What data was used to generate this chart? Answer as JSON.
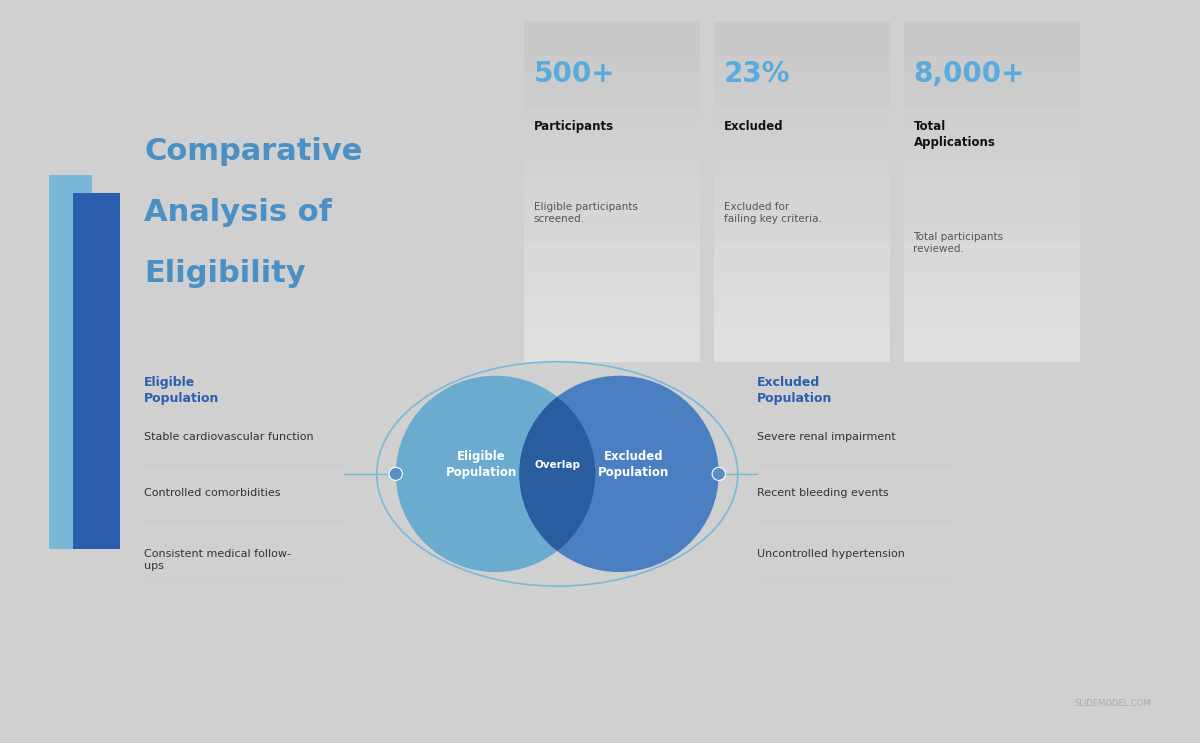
{
  "title_line1": "Comparative",
  "title_line2": "Analysis of",
  "title_line3": "Eligibility",
  "title_color": "#4a90c4",
  "bg_color": "#ffffff",
  "slide_bg": "#d0d0d0",
  "stats": [
    {
      "value": "500+",
      "label": "Participants",
      "desc": "Eligible participants\nscreened."
    },
    {
      "value": "23%",
      "label": "Excluded",
      "desc": "Excluded for\nfailing key criteria."
    },
    {
      "value": "8,000+",
      "label": "Total\nApplications",
      "desc": "Total participants\nreviewed."
    }
  ],
  "stat_value_color": "#5aabdd",
  "stat_box_top_color": "#e8e8e8",
  "stat_box_bottom_color": "#c8c8c8",
  "left_heading": "Eligible\nPopulation",
  "left_items": [
    "Stable cardiovascular function",
    "Controlled comorbidities",
    "Consistent medical follow-\nups"
  ],
  "right_heading": "Excluded\nPopulation",
  "right_items": [
    "Severe renal impairment",
    "Recent bleeding events",
    "Uncontrolled hypertension"
  ],
  "heading_color": "#2b5fad",
  "item_color": "#333333",
  "venn_left_color": "#6aabcf",
  "venn_right_color": "#4a7fc1",
  "venn_overlap_color": "#2a5da0",
  "venn_outline_color": "#7ab8d8",
  "venn_left_label": "Eligible\nPopulation",
  "venn_right_label": "Excluded\nPopulation",
  "venn_overlap_label": "Overlap",
  "venn_label_color": "#ffffff",
  "connector_color": "#7ab8d8",
  "dot_color": "#5a8fc4",
  "watermark": "SLIDEMODEL.COM",
  "left_bar_light_color": "#7ab8d8",
  "left_bar_dark_color": "#2b5fad"
}
